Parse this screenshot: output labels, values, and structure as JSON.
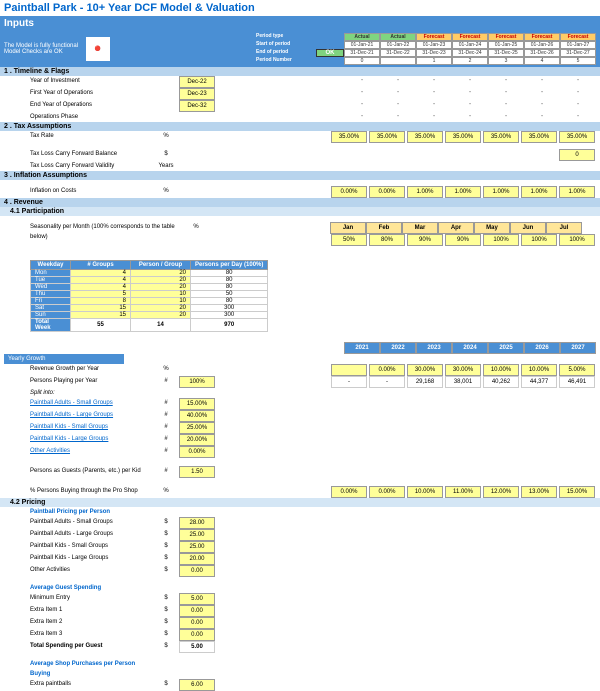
{
  "title": "Paintball Park - 10+ Year DCF Model & Valuation",
  "inputs_label": "Inputs",
  "note1": "The Model is fully functional",
  "note2": "Model Checks are OK",
  "ok": "OK",
  "period": {
    "type_lbl": "Period type",
    "start_lbl": "Start of period",
    "end_lbl": "End of period",
    "num_lbl": "Period Number",
    "statuses": [
      "Actual",
      "Actual",
      "Forecast",
      "Forecast",
      "Forecast",
      "Forecast",
      "Forecast"
    ],
    "starts": [
      "01-Jan-21",
      "01-Jan-22",
      "01-Jan-23",
      "01-Jan-24",
      "01-Jan-25",
      "01-Jan-26",
      "01-Jan-27"
    ],
    "ends": [
      "31-Dec-21",
      "31-Dec-22",
      "31-Dec-23",
      "31-Dec-24",
      "31-Dec-25",
      "31-Dec-26",
      "31-Dec-27"
    ],
    "nums": [
      "0",
      "",
      "1",
      "2",
      "3",
      "4",
      "5"
    ]
  },
  "s1": {
    "hdr": "1 . Timeline & Flags",
    "r": [
      {
        "l": "Year of Investment",
        "v": "Dec-22"
      },
      {
        "l": "First Year of Operations",
        "v": "Dec-23"
      },
      {
        "l": "End Year of Operations",
        "v": "Dec-32"
      },
      {
        "l": "Operations Phase",
        "v": ""
      }
    ]
  },
  "s2": {
    "hdr": "2 . Tax Assumptions",
    "tax_lbl": "Tax Rate",
    "tax_u": "%",
    "tax_vals": [
      "35.00%",
      "35.00%",
      "35.00%",
      "35.00%",
      "35.00%",
      "35.00%",
      "35.00%"
    ],
    "tlcf_lbl": "Tax Loss Carry Forward Balance",
    "tlcf_u": "$",
    "tlcf_v": "0",
    "tlcv_lbl": "Tax Loss Carry Forward Validity",
    "tlcv_u": "Years"
  },
  "s3": {
    "hdr": "3 . Inflation Assumptions",
    "inf_lbl": "Inflation on Costs",
    "inf_u": "%",
    "inf_vals": [
      "0.00%",
      "0.00%",
      "1.00%",
      "1.00%",
      "1.00%",
      "1.00%",
      "1.00%"
    ]
  },
  "s4": {
    "hdr": "4 . Revenue"
  },
  "s41": {
    "hdr": "4.1  Participation",
    "seas_lbl": "Seasonality per Month (100% corresponds to the table below)",
    "seas_u": "%",
    "months": [
      "Jan",
      "Feb",
      "Mar",
      "Apr",
      "May",
      "Jun",
      "Jul"
    ],
    "seas_vals": [
      "50%",
      "80%",
      "90%",
      "90%",
      "100%",
      "100%",
      "100%"
    ]
  },
  "wk": {
    "h": [
      "Weekday",
      "# Groups",
      "Person / Group",
      "Persons per Day (100%)"
    ],
    "rows": [
      {
        "d": "Mon",
        "g": "4",
        "p": "20",
        "t": "80"
      },
      {
        "d": "Tue",
        "g": "4",
        "p": "20",
        "t": "80"
      },
      {
        "d": "Wed",
        "g": "4",
        "p": "20",
        "t": "80"
      },
      {
        "d": "Thu",
        "g": "5",
        "p": "10",
        "t": "50"
      },
      {
        "d": "Fri",
        "g": "8",
        "p": "10",
        "t": "80"
      },
      {
        "d": "Sat",
        "g": "15",
        "p": "20",
        "t": "300"
      },
      {
        "d": "Sun",
        "g": "15",
        "p": "20",
        "t": "300"
      }
    ],
    "tot_lbl": "Total Week",
    "tot_g": "55",
    "tot_p": "14",
    "tot_t": "970"
  },
  "yg": {
    "hdr": "Yearly Growth",
    "years": [
      "2021",
      "2022",
      "2023",
      "2024",
      "2025",
      "2026",
      "2027"
    ],
    "rev_lbl": "Revenue Growth per Year",
    "rev_u": "%",
    "rev_vals": [
      "",
      "0.00%",
      "30.00%",
      "30.00%",
      "10.00%",
      "10.00%",
      "5.00%"
    ],
    "ppy_lbl": "Persons Playing per Year",
    "ppy_u": "#",
    "ppy_in": "100%",
    "ppy_vals": [
      "-",
      "-",
      "29,168",
      "38,001",
      "40,262",
      "44,377",
      "46,491"
    ],
    "split_lbl": "Split into:",
    "sp": [
      {
        "l": "Paintball Adults - Small Groups",
        "u": "#",
        "v": "15.00%"
      },
      {
        "l": "Paintball Adults - Large Groups",
        "u": "#",
        "v": "40.00%"
      },
      {
        "l": "Paintball Kids - Small Groups",
        "u": "#",
        "v": "25.00%"
      },
      {
        "l": "Paintball Kids - Large Groups",
        "u": "#",
        "v": "20.00%"
      },
      {
        "l": "Other Activities",
        "u": "#",
        "v": "0.00%"
      }
    ],
    "guests_lbl": "Persons as Guests (Parents, etc.) per Kid",
    "guests_u": "#",
    "guests_v": "1.50",
    "shop_lbl": "% Persons Buying through the Pro Shop",
    "shop_u": "%",
    "shop_vals": [
      "0.00%",
      "0.00%",
      "10.00%",
      "11.00%",
      "12.00%",
      "13.00%",
      "15.00%"
    ]
  },
  "s42": {
    "hdr": "4.2  Pricing",
    "pr_hdr": "Paintball Pricing per Person",
    "pr": [
      {
        "l": "Paintball Adults - Small Groups",
        "u": "$",
        "v": "28.00"
      },
      {
        "l": "Paintball Adults - Large Groups",
        "u": "$",
        "v": "25.00"
      },
      {
        "l": "Paintball Kids - Small Groups",
        "u": "$",
        "v": "25.00"
      },
      {
        "l": "Paintball Kids - Large Groups",
        "u": "$",
        "v": "20.00"
      },
      {
        "l": "Other Activities",
        "u": "$",
        "v": "0.00"
      }
    ],
    "gs_hdr": "Average Guest Spending",
    "gs": [
      {
        "l": "Minimum Entry",
        "u": "$",
        "v": "5.00"
      },
      {
        "l": "Extra Item 1",
        "u": "$",
        "v": "0.00"
      },
      {
        "l": "Extra Item 2",
        "u": "$",
        "v": "0.00"
      },
      {
        "l": "Extra Item 3",
        "u": "$",
        "v": "0.00"
      }
    ],
    "gs_tot_lbl": "Total Spending per Guest",
    "gs_tot_u": "$",
    "gs_tot_v": "5.00",
    "sh_hdr": "Average Shop Purchases per Person Buying",
    "sh": [
      {
        "l": "Extra paintballs",
        "u": "$",
        "v": "6.00"
      }
    ]
  }
}
